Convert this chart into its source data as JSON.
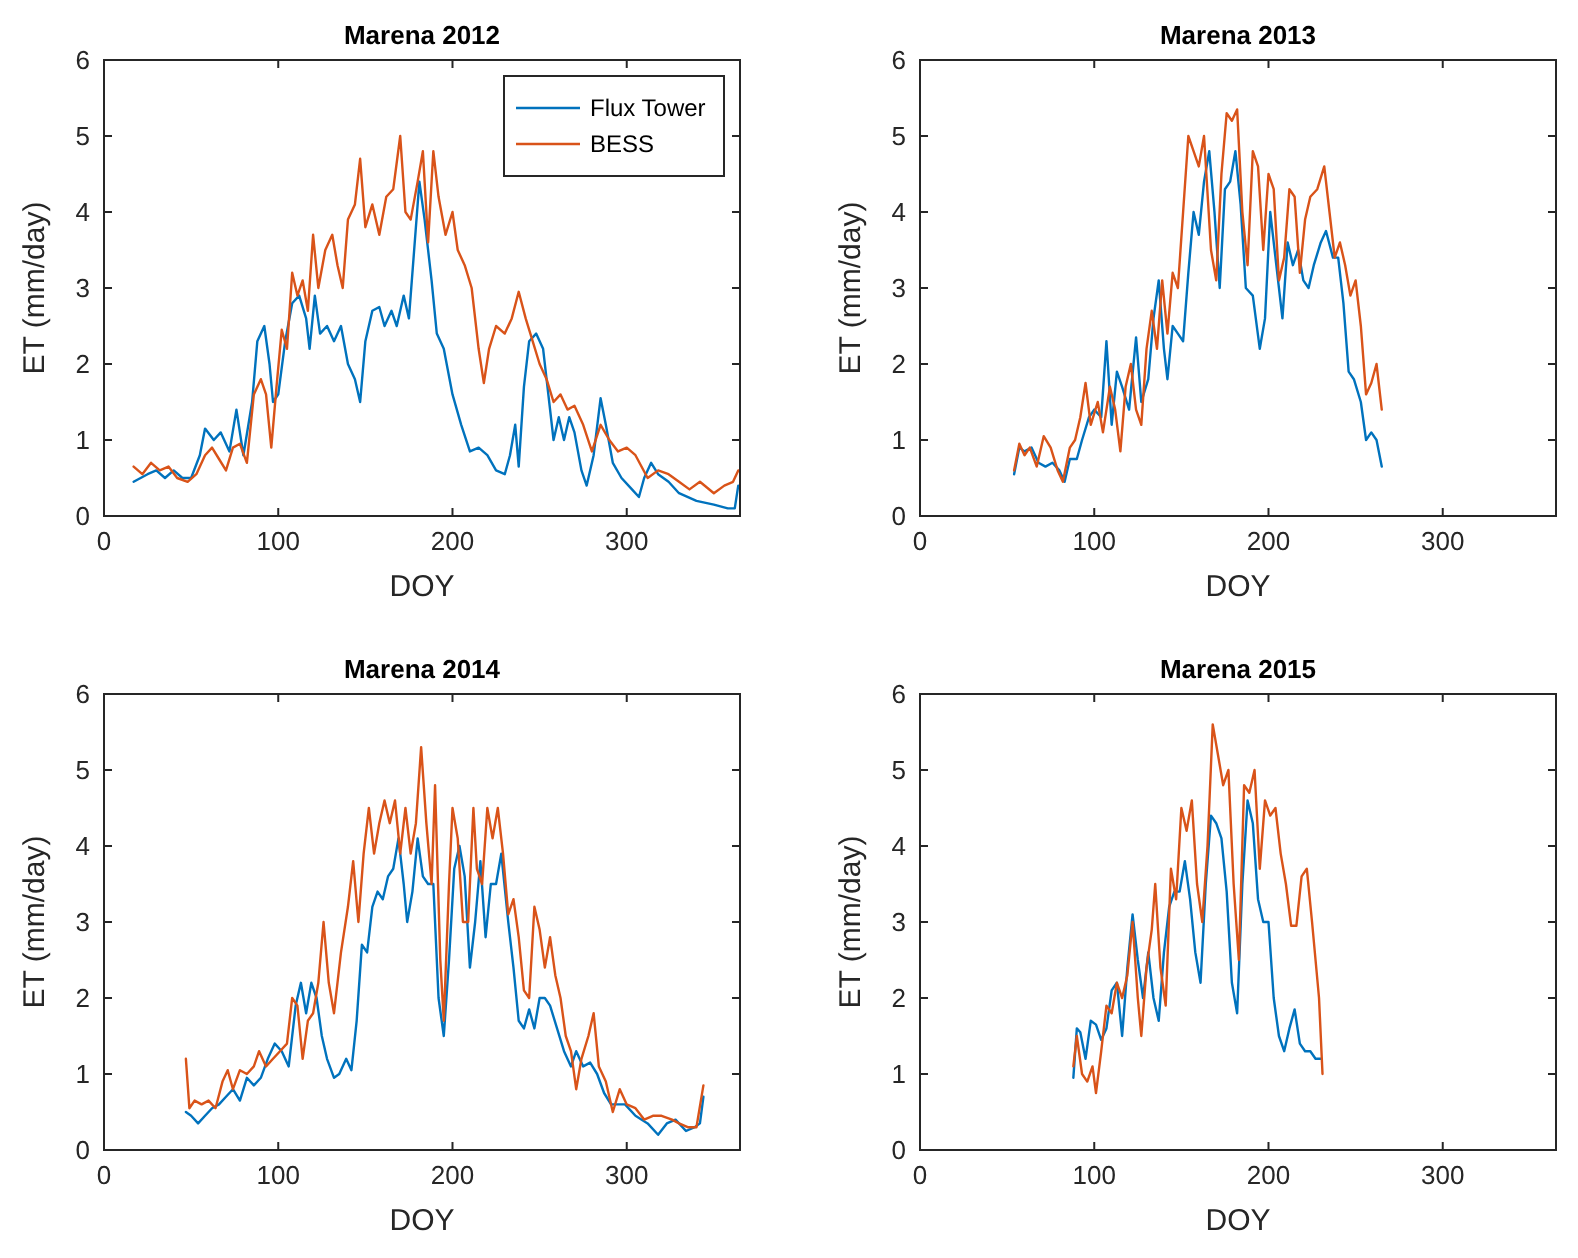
{
  "chart_data": [
    {
      "type": "line",
      "title": "Marena 2012",
      "xlabel": "DOY",
      "ylabel": "ET (mm/day)",
      "xlim": [
        0,
        365
      ],
      "xticks": [
        0,
        100,
        200,
        300
      ],
      "ylim": [
        0,
        6
      ],
      "yticks": [
        0,
        1,
        2,
        3,
        4,
        5,
        6
      ],
      "legend": "top right",
      "series": [
        {
          "name": "Flux Tower",
          "color": "#0072bd",
          "x": [
            17,
            25,
            30,
            35,
            40,
            45,
            50,
            55,
            58,
            63,
            67,
            72,
            76,
            80,
            85,
            88,
            92,
            95,
            97,
            100,
            104,
            108,
            112,
            116,
            118,
            121,
            124,
            128,
            132,
            136,
            140,
            144,
            147,
            150,
            154,
            158,
            161,
            165,
            168,
            172,
            175,
            178,
            181,
            184,
            188,
            191,
            195,
            200,
            205,
            210,
            215,
            220,
            225,
            230,
            233,
            236,
            238,
            241,
            244,
            248,
            252,
            255,
            258,
            261,
            264,
            267,
            270,
            274,
            277,
            281,
            285,
            288,
            292,
            297,
            303,
            307,
            310,
            314,
            318,
            324,
            330,
            340,
            350,
            358,
            362,
            364
          ],
          "values": [
            0.45,
            0.55,
            0.6,
            0.5,
            0.6,
            0.5,
            0.5,
            0.8,
            1.15,
            1.0,
            1.1,
            0.85,
            1.4,
            0.8,
            1.5,
            2.3,
            2.5,
            2.0,
            1.5,
            1.6,
            2.3,
            2.8,
            2.9,
            2.6,
            2.2,
            2.9,
            2.4,
            2.5,
            2.3,
            2.5,
            2.0,
            1.8,
            1.5,
            2.3,
            2.7,
            2.75,
            2.5,
            2.7,
            2.5,
            2.9,
            2.6,
            3.5,
            4.4,
            3.9,
            3.1,
            2.4,
            2.2,
            1.6,
            1.2,
            0.85,
            0.9,
            0.8,
            0.6,
            0.55,
            0.8,
            1.2,
            0.65,
            1.7,
            2.3,
            2.4,
            2.2,
            1.6,
            1.0,
            1.3,
            1.0,
            1.3,
            1.1,
            0.6,
            0.4,
            0.8,
            1.55,
            1.2,
            0.7,
            0.5,
            0.35,
            0.25,
            0.5,
            0.7,
            0.55,
            0.45,
            0.3,
            0.2,
            0.15,
            0.1,
            0.1,
            0.4
          ]
        },
        {
          "name": "BESS",
          "color": "#d95319",
          "x": [
            17,
            22,
            27,
            32,
            37,
            42,
            48,
            53,
            58,
            62,
            66,
            70,
            74,
            78,
            82,
            86,
            90,
            93,
            96,
            99,
            102,
            105,
            108,
            111,
            114,
            117,
            120,
            123,
            127,
            131,
            134,
            137,
            140,
            144,
            147,
            150,
            154,
            158,
            162,
            166,
            170,
            173,
            176,
            180,
            183,
            186,
            189,
            192,
            196,
            200,
            203,
            207,
            211,
            215,
            218,
            221,
            225,
            230,
            234,
            238,
            242,
            246,
            250,
            254,
            258,
            262,
            266,
            270,
            275,
            280,
            285,
            290,
            295,
            300,
            305,
            312,
            318,
            324,
            330,
            336,
            342,
            350,
            356,
            361,
            364
          ],
          "values": [
            0.65,
            0.55,
            0.7,
            0.6,
            0.65,
            0.5,
            0.45,
            0.55,
            0.8,
            0.9,
            0.75,
            0.6,
            0.9,
            0.95,
            0.7,
            1.6,
            1.8,
            1.6,
            0.9,
            1.7,
            2.45,
            2.2,
            3.2,
            2.9,
            3.1,
            2.7,
            3.7,
            3.0,
            3.5,
            3.7,
            3.3,
            3.0,
            3.9,
            4.1,
            4.7,
            3.8,
            4.1,
            3.7,
            4.2,
            4.3,
            5.0,
            4.0,
            3.9,
            4.4,
            4.8,
            3.6,
            4.8,
            4.2,
            3.7,
            4.0,
            3.5,
            3.3,
            3.0,
            2.2,
            1.75,
            2.2,
            2.5,
            2.4,
            2.6,
            2.95,
            2.6,
            2.3,
            2.0,
            1.8,
            1.5,
            1.6,
            1.4,
            1.45,
            1.2,
            0.85,
            1.2,
            1.0,
            0.85,
            0.9,
            0.8,
            0.5,
            0.6,
            0.55,
            0.45,
            0.35,
            0.45,
            0.3,
            0.4,
            0.45,
            0.6
          ]
        }
      ]
    },
    {
      "type": "line",
      "title": "Marena 2013",
      "xlabel": "DOY",
      "ylabel": "ET (mm/day)",
      "xlim": [
        0,
        365
      ],
      "xticks": [
        0,
        100,
        200,
        300
      ],
      "ylim": [
        0,
        6
      ],
      "yticks": [
        0,
        1,
        2,
        3,
        4,
        5,
        6
      ],
      "series": [
        {
          "color": "#0072bd",
          "x": [
            54,
            57,
            60,
            64,
            68,
            72,
            76,
            80,
            83,
            86,
            90,
            93,
            97,
            100,
            104,
            107,
            110,
            113,
            116,
            120,
            124,
            127,
            131,
            134,
            137,
            140,
            142,
            145,
            148,
            151,
            154,
            157,
            160,
            163,
            166,
            169,
            172,
            175,
            178,
            181,
            184,
            187,
            191,
            195,
            198,
            201,
            205,
            208,
            211,
            214,
            217,
            220,
            223,
            226,
            230,
            233,
            237,
            240,
            243,
            246,
            249,
            253,
            256,
            259,
            262,
            265
          ],
          "values": [
            0.55,
            0.9,
            0.85,
            0.9,
            0.7,
            0.65,
            0.7,
            0.6,
            0.45,
            0.75,
            0.75,
            1.0,
            1.3,
            1.4,
            1.3,
            2.3,
            1.2,
            1.9,
            1.7,
            1.4,
            2.35,
            1.5,
            1.8,
            2.6,
            3.1,
            2.2,
            1.8,
            2.5,
            2.4,
            2.3,
            3.2,
            4.0,
            3.7,
            4.4,
            4.8,
            4.0,
            3.0,
            4.3,
            4.4,
            4.8,
            4.1,
            3.0,
            2.9,
            2.2,
            2.6,
            4.0,
            3.2,
            2.6,
            3.6,
            3.3,
            3.5,
            3.1,
            3.0,
            3.3,
            3.6,
            3.75,
            3.4,
            3.4,
            2.8,
            1.9,
            1.8,
            1.5,
            1.0,
            1.1,
            1.0,
            0.65
          ]
        },
        {
          "color": "#d95319",
          "x": [
            54,
            57,
            60,
            63,
            67,
            71,
            75,
            79,
            82,
            86,
            89,
            92,
            95,
            98,
            102,
            105,
            109,
            112,
            115,
            118,
            121,
            124,
            127,
            130,
            133,
            136,
            139,
            142,
            145,
            148,
            151,
            154,
            157,
            160,
            163,
            167,
            170,
            173,
            176,
            179,
            182,
            185,
            188,
            191,
            194,
            197,
            200,
            203,
            206,
            209,
            212,
            215,
            218,
            221,
            224,
            228,
            232,
            235,
            238,
            241,
            244,
            247,
            250,
            253,
            256,
            259,
            262,
            265
          ],
          "values": [
            0.6,
            0.95,
            0.8,
            0.9,
            0.65,
            1.05,
            0.9,
            0.6,
            0.45,
            0.9,
            1.0,
            1.3,
            1.75,
            1.2,
            1.5,
            1.1,
            1.7,
            1.4,
            0.85,
            1.7,
            2.0,
            1.4,
            1.2,
            2.2,
            2.7,
            2.2,
            3.1,
            2.4,
            3.2,
            3.0,
            4.0,
            5.0,
            4.8,
            4.6,
            5.0,
            3.5,
            3.1,
            4.5,
            5.3,
            5.2,
            5.35,
            4.0,
            3.3,
            4.8,
            4.6,
            3.5,
            4.5,
            4.3,
            3.1,
            3.4,
            4.3,
            4.2,
            3.2,
            3.9,
            4.2,
            4.3,
            4.6,
            4.0,
            3.4,
            3.6,
            3.3,
            2.9,
            3.1,
            2.5,
            1.6,
            1.75,
            2.0,
            1.4
          ]
        }
      ]
    },
    {
      "type": "line",
      "title": "Marena 2014",
      "xlabel": "DOY",
      "ylabel": "ET (mm/day)",
      "xlim": [
        0,
        365
      ],
      "xticks": [
        0,
        100,
        200,
        300
      ],
      "ylim": [
        0,
        6
      ],
      "yticks": [
        0,
        1,
        2,
        3,
        4,
        5,
        6
      ],
      "series": [
        {
          "color": "#0072bd",
          "x": [
            47,
            50,
            54,
            58,
            62,
            66,
            70,
            74,
            78,
            82,
            86,
            90,
            94,
            98,
            102,
            106,
            110,
            113,
            116,
            119,
            122,
            125,
            128,
            132,
            135,
            139,
            142,
            145,
            148,
            151,
            154,
            157,
            160,
            163,
            166,
            169,
            172,
            174,
            177,
            180,
            183,
            186,
            189,
            192,
            195,
            198,
            201,
            204,
            207,
            210,
            213,
            216,
            219,
            222,
            225,
            228,
            232,
            235,
            238,
            241,
            244,
            247,
            250,
            253,
            256,
            260,
            264,
            268,
            271,
            275,
            279,
            283,
            287,
            291,
            295,
            299,
            305,
            312,
            318,
            323,
            328,
            334,
            339,
            342,
            344
          ],
          "values": [
            0.5,
            0.45,
            0.35,
            0.45,
            0.55,
            0.6,
            0.7,
            0.8,
            0.65,
            0.95,
            0.85,
            0.95,
            1.2,
            1.4,
            1.3,
            1.1,
            1.9,
            2.2,
            1.8,
            2.2,
            2.0,
            1.5,
            1.2,
            0.95,
            1.0,
            1.2,
            1.05,
            1.7,
            2.7,
            2.6,
            3.2,
            3.4,
            3.3,
            3.6,
            3.7,
            4.1,
            3.5,
            3.0,
            3.4,
            4.1,
            3.6,
            3.5,
            3.5,
            2.0,
            1.5,
            2.5,
            3.7,
            4.0,
            3.6,
            2.4,
            3.0,
            3.8,
            2.8,
            3.5,
            3.5,
            3.9,
            3.0,
            2.4,
            1.7,
            1.6,
            1.85,
            1.6,
            2.0,
            2.0,
            1.9,
            1.6,
            1.3,
            1.1,
            1.3,
            1.1,
            1.15,
            1.0,
            0.75,
            0.6,
            0.6,
            0.6,
            0.45,
            0.35,
            0.2,
            0.35,
            0.4,
            0.25,
            0.3,
            0.35,
            0.7
          ]
        },
        {
          "color": "#d95319",
          "x": [
            47,
            49,
            52,
            56,
            60,
            64,
            68,
            71,
            74,
            78,
            82,
            86,
            89,
            93,
            97,
            101,
            105,
            108,
            111,
            114,
            117,
            120,
            123,
            126,
            129,
            132,
            136,
            140,
            143,
            146,
            149,
            152,
            155,
            158,
            161,
            164,
            167,
            170,
            173,
            176,
            179,
            182,
            185,
            188,
            190,
            193,
            195,
            198,
            200,
            203,
            206,
            209,
            212,
            214,
            217,
            220,
            223,
            226,
            229,
            232,
            235,
            238,
            241,
            244,
            247,
            250,
            253,
            256,
            259,
            262,
            265,
            268,
            271,
            274,
            278,
            281,
            284,
            288,
            292,
            296,
            300,
            305,
            310,
            315,
            320,
            326,
            330,
            335,
            340,
            344
          ],
          "values": [
            1.2,
            0.55,
            0.65,
            0.6,
            0.65,
            0.55,
            0.9,
            1.05,
            0.8,
            1.05,
            1.0,
            1.1,
            1.3,
            1.1,
            1.2,
            1.3,
            1.4,
            2.0,
            1.9,
            1.2,
            1.7,
            1.8,
            2.2,
            3.0,
            2.2,
            1.8,
            2.6,
            3.2,
            3.8,
            3.0,
            3.9,
            4.5,
            3.9,
            4.3,
            4.6,
            4.3,
            4.6,
            3.9,
            4.5,
            3.9,
            4.3,
            5.3,
            4.3,
            3.5,
            4.8,
            2.5,
            1.7,
            3.5,
            4.5,
            4.1,
            3.0,
            3.0,
            4.5,
            3.7,
            3.5,
            4.5,
            4.1,
            4.5,
            3.9,
            3.1,
            3.3,
            2.8,
            2.1,
            2.0,
            3.2,
            2.9,
            2.4,
            2.8,
            2.3,
            2.0,
            1.5,
            1.3,
            0.8,
            1.2,
            1.5,
            1.8,
            1.1,
            0.9,
            0.5,
            0.8,
            0.6,
            0.55,
            0.4,
            0.45,
            0.45,
            0.4,
            0.35,
            0.3,
            0.3,
            0.85
          ]
        }
      ]
    },
    {
      "type": "line",
      "title": "Marena 2015",
      "xlabel": "DOY",
      "ylabel": "ET (mm/day)",
      "xlim": [
        0,
        365
      ],
      "xticks": [
        0,
        100,
        200,
        300
      ],
      "ylim": [
        0,
        6
      ],
      "yticks": [
        0,
        1,
        2,
        3,
        4,
        5,
        6
      ],
      "series": [
        {
          "color": "#0072bd",
          "x": [
            88,
            90,
            92,
            95,
            98,
            101,
            104,
            107,
            110,
            113,
            116,
            119,
            122,
            125,
            128,
            131,
            134,
            137,
            140,
            143,
            146,
            149,
            152,
            155,
            158,
            161,
            164,
            167,
            170,
            173,
            176,
            179,
            182,
            185,
            188,
            191,
            194,
            197,
            200,
            203,
            206,
            209,
            212,
            215,
            218,
            221,
            224,
            227,
            230
          ],
          "values": [
            0.95,
            1.6,
            1.55,
            1.2,
            1.7,
            1.65,
            1.45,
            1.6,
            2.1,
            2.2,
            1.5,
            2.4,
            3.1,
            2.5,
            2.0,
            2.6,
            2.0,
            1.7,
            2.6,
            3.2,
            3.4,
            3.4,
            3.8,
            3.3,
            2.6,
            2.2,
            3.5,
            4.4,
            4.3,
            4.1,
            3.4,
            2.2,
            1.8,
            3.5,
            4.6,
            4.3,
            3.3,
            3.0,
            3.0,
            2.0,
            1.5,
            1.3,
            1.6,
            1.85,
            1.4,
            1.3,
            1.3,
            1.2,
            1.2
          ]
        },
        {
          "color": "#d95319",
          "x": [
            88,
            90,
            93,
            96,
            99,
            101,
            104,
            107,
            110,
            113,
            116,
            119,
            122,
            125,
            127,
            130,
            133,
            135,
            138,
            141,
            144,
            147,
            150,
            153,
            156,
            159,
            162,
            165,
            168,
            171,
            174,
            177,
            180,
            183,
            186,
            189,
            192,
            195,
            198,
            201,
            204,
            207,
            210,
            213,
            216,
            219,
            222,
            225,
            229,
            231
          ],
          "values": [
            1.1,
            1.5,
            1.0,
            0.9,
            1.1,
            0.75,
            1.3,
            1.9,
            1.8,
            2.2,
            2.0,
            2.3,
            3.0,
            2.0,
            1.5,
            2.4,
            2.9,
            3.5,
            2.4,
            1.9,
            3.7,
            3.3,
            4.5,
            4.2,
            4.6,
            3.5,
            3.0,
            4.0,
            5.6,
            5.2,
            4.8,
            5.0,
            3.5,
            2.5,
            4.8,
            4.7,
            5.0,
            3.7,
            4.6,
            4.4,
            4.5,
            3.9,
            3.5,
            2.95,
            2.95,
            3.6,
            3.7,
            3.0,
            2.0,
            1.0
          ]
        }
      ]
    }
  ]
}
